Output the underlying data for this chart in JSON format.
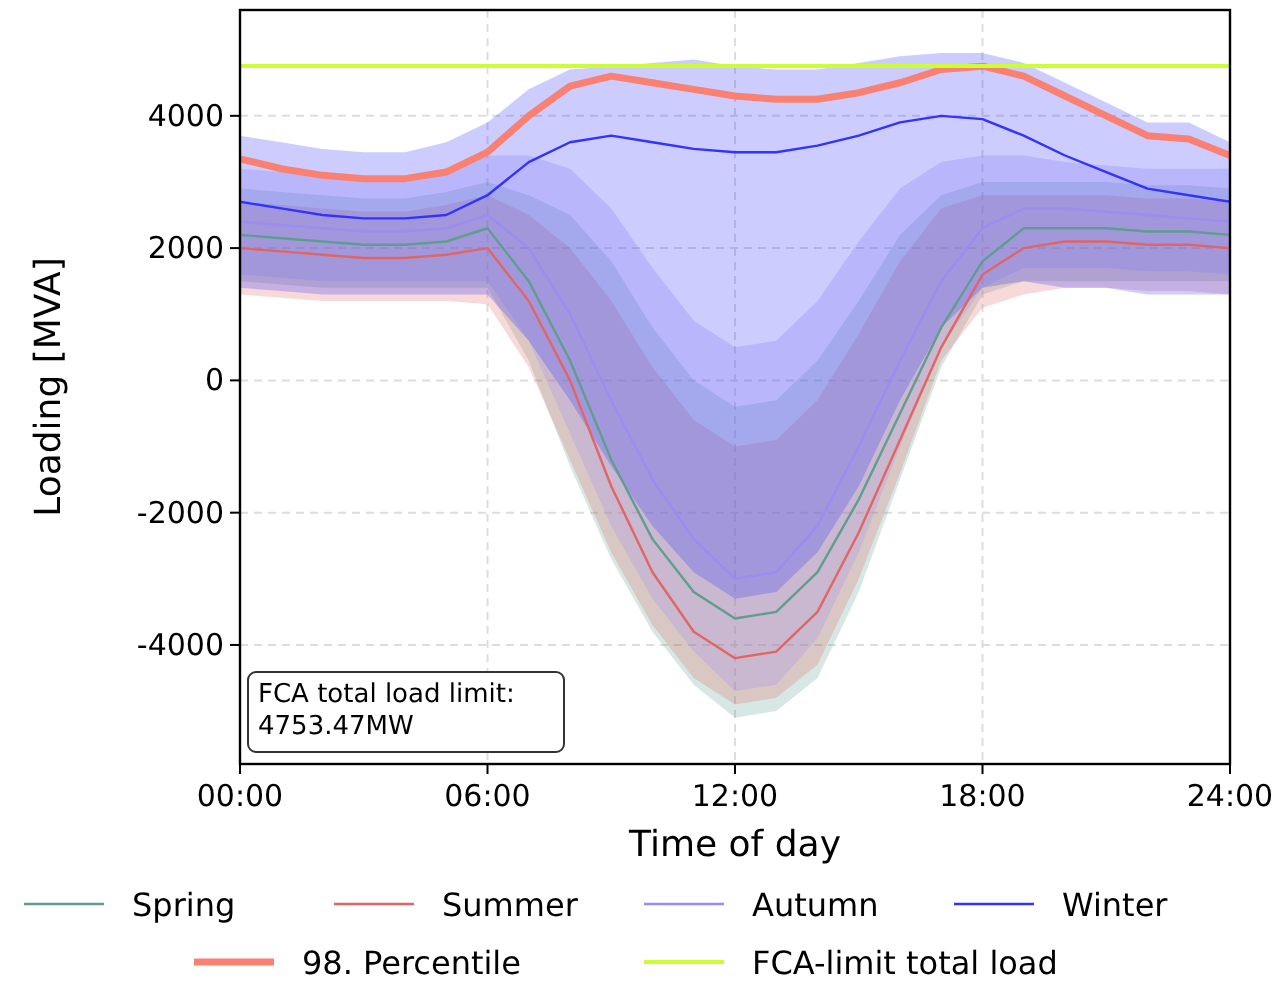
{
  "chart_data": {
    "type": "line",
    "xlabel": "Time of day",
    "ylabel": "Loading [MVA]",
    "x": [
      0,
      1,
      2,
      3,
      4,
      5,
      6,
      7,
      8,
      9,
      10,
      11,
      12,
      13,
      14,
      15,
      16,
      17,
      18,
      19,
      20,
      21,
      22,
      23,
      24
    ],
    "xlim": [
      0,
      24
    ],
    "xticks": [
      {
        "value": 0,
        "label": "00:00"
      },
      {
        "value": 6,
        "label": "06:00"
      },
      {
        "value": 12,
        "label": "12:00"
      },
      {
        "value": 18,
        "label": "18:00"
      },
      {
        "value": 24,
        "label": "24:00"
      }
    ],
    "ylim": [
      -5800,
      5600
    ],
    "yticks": [
      -4000,
      -2000,
      0,
      2000,
      4000
    ],
    "grid": true,
    "legend": "bottom",
    "line_style": "solid",
    "marker": "none",
    "series": [
      {
        "name": "Spring",
        "color": "#5f9e8f",
        "values": [
          2200,
          2150,
          2100,
          2050,
          2050,
          2100,
          2300,
          1500,
          300,
          -1200,
          -2400,
          -3200,
          -3600,
          -3500,
          -2900,
          -1800,
          -500,
          800,
          1800,
          2300,
          2300,
          2300,
          2250,
          2250,
          2200
        ],
        "lower": [
          1500,
          1450,
          1400,
          1400,
          1400,
          1400,
          1400,
          300,
          -1300,
          -2700,
          -3800,
          -4600,
          -5100,
          -5000,
          -4500,
          -3200,
          -1500,
          200,
          1300,
          1500,
          1500,
          1500,
          1500,
          1500,
          1500
        ],
        "upper": [
          2900,
          2850,
          2800,
          2750,
          2750,
          2850,
          3000,
          2800,
          2500,
          1800,
          800,
          0,
          -400,
          -300,
          300,
          1200,
          2200,
          2800,
          3000,
          3000,
          3000,
          3000,
          2950,
          2950,
          2900
        ]
      },
      {
        "name": "Summer",
        "color": "#e06666",
        "values": [
          2000,
          1950,
          1900,
          1850,
          1850,
          1900,
          2000,
          1200,
          0,
          -1600,
          -2900,
          -3800,
          -4200,
          -4100,
          -3500,
          -2300,
          -900,
          500,
          1600,
          2000,
          2100,
          2100,
          2050,
          2050,
          2000
        ],
        "lower": [
          1300,
          1250,
          1200,
          1200,
          1200,
          1200,
          1150,
          200,
          -1200,
          -2600,
          -3700,
          -4500,
          -4900,
          -4800,
          -4300,
          -3000,
          -1400,
          300,
          1100,
          1300,
          1400,
          1400,
          1350,
          1350,
          1300
        ],
        "upper": [
          2700,
          2650,
          2600,
          2550,
          2550,
          2650,
          2800,
          2500,
          2000,
          1200,
          200,
          -600,
          -1000,
          -900,
          -300,
          700,
          1800,
          2600,
          2800,
          2800,
          2800,
          2800,
          2750,
          2750,
          2700
        ]
      },
      {
        "name": "Autumn",
        "color": "#9a8cf0",
        "values": [
          2400,
          2350,
          2300,
          2250,
          2250,
          2300,
          2500,
          2000,
          1000,
          -300,
          -1500,
          -2400,
          -3000,
          -2900,
          -2200,
          -1000,
          300,
          1500,
          2300,
          2600,
          2600,
          2550,
          2500,
          2450,
          2400
        ],
        "lower": [
          1600,
          1550,
          1500,
          1500,
          1500,
          1500,
          1500,
          600,
          -800,
          -2200,
          -3300,
          -4100,
          -4700,
          -4600,
          -3900,
          -2600,
          -1000,
          500,
          1400,
          1700,
          1700,
          1700,
          1650,
          1650,
          1600
        ],
        "upper": [
          3200,
          3150,
          3100,
          3050,
          3050,
          3150,
          3400,
          3400,
          3200,
          2600,
          1700,
          900,
          500,
          600,
          1200,
          2100,
          2900,
          3300,
          3400,
          3400,
          3300,
          3250,
          3200,
          3200,
          3200
        ]
      },
      {
        "name": "Winter",
        "color": "#3333ff",
        "values": [
          2700,
          2600,
          2500,
          2450,
          2450,
          2500,
          2800,
          3300,
          3600,
          3700,
          3600,
          3500,
          3450,
          3450,
          3550,
          3700,
          3900,
          4000,
          3950,
          3700,
          3400,
          3150,
          2900,
          2800,
          2700
        ],
        "lower": [
          1400,
          1350,
          1300,
          1300,
          1300,
          1300,
          1300,
          600,
          -300,
          -1300,
          -2200,
          -2900,
          -3300,
          -3200,
          -2600,
          -1600,
          -300,
          800,
          1400,
          1500,
          1400,
          1400,
          1300,
          1300,
          1300
        ],
        "upper": [
          3700,
          3600,
          3500,
          3450,
          3450,
          3600,
          3900,
          4400,
          4700,
          4750,
          4800,
          4850,
          4750,
          4700,
          4700,
          4800,
          4900,
          4950,
          4950,
          4800,
          4500,
          4200,
          3900,
          3900,
          3600
        ]
      },
      {
        "name": "98. Percentile",
        "color": "#fa8072",
        "values": [
          3350,
          3200,
          3100,
          3050,
          3050,
          3150,
          3450,
          4000,
          4450,
          4600,
          4500,
          4400,
          4300,
          4250,
          4250,
          4350,
          4500,
          4700,
          4750,
          4600,
          4300,
          4000,
          3700,
          3650,
          3400
        ]
      }
    ],
    "ref_lines": [
      {
        "axis": "y",
        "value": 4753.47,
        "label": "FCA-limit total load",
        "color": "#ccff33",
        "line_style": "solid"
      }
    ],
    "annotations": [
      "FCA total load limit:\n4753.47MW"
    ]
  }
}
